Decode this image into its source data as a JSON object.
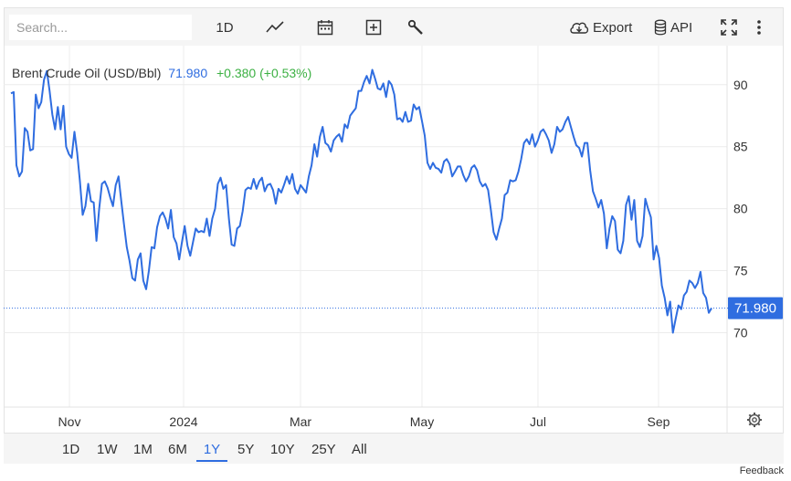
{
  "toolbar": {
    "search_placeholder": "Search...",
    "interval_label": "1D",
    "export_label": "Export",
    "api_label": "API",
    "icons": [
      "chart-line-icon",
      "calendar-icon",
      "add-box-icon",
      "wrench-icon",
      "cloud-download-icon",
      "database-icon",
      "fullscreen-icon",
      "more-vertical-icon"
    ]
  },
  "legend": {
    "name": "Brent Crude Oil (USD/Bbl)",
    "price": "71.980",
    "change": "+0.380 (+0.53%)"
  },
  "price_tag": "71.980",
  "ranges": [
    {
      "label": "1D",
      "active": false
    },
    {
      "label": "1W",
      "active": false
    },
    {
      "label": "1M",
      "active": false
    },
    {
      "label": "6M",
      "active": false
    },
    {
      "label": "1Y",
      "active": true
    },
    {
      "label": "5Y",
      "active": false
    },
    {
      "label": "10Y",
      "active": false
    },
    {
      "label": "25Y",
      "active": false
    },
    {
      "label": "All",
      "active": false
    }
  ],
  "feedback_label": "Feedback",
  "colors": {
    "line": "#2f6de0",
    "positive": "#3cb043",
    "grid": "#ececec",
    "toolbar_bg": "#f5f5f5"
  },
  "chart_data": {
    "type": "line",
    "title": "Brent Crude Oil (USD/Bbl)",
    "xlabel": "",
    "ylabel": "",
    "ylim": [
      64,
      93
    ],
    "yticks": [
      70,
      75,
      80,
      85,
      90
    ],
    "x_tick_labels": [
      "Nov",
      "2024",
      "Mar",
      "May",
      "Jul",
      "Sep"
    ],
    "grid": true,
    "last_value": 71.98,
    "series": [
      {
        "values": [
          89.3,
          89.4,
          83.5,
          82.6,
          83.0,
          86.5,
          86.2,
          84.7,
          84.8,
          89.2,
          88.1,
          88.6,
          90.4,
          91.1,
          89.5,
          87.6,
          86.4,
          88.2,
          86.4,
          88.3,
          85.0,
          84.4,
          84.1,
          86.2,
          84.5,
          82.2,
          79.5,
          80.2,
          82.0,
          80.6,
          80.5,
          77.4,
          80.0,
          82.0,
          82.2,
          81.7,
          80.9,
          80.2,
          81.9,
          82.6,
          80.6,
          78.7,
          76.9,
          75.8,
          74.4,
          74.2,
          75.9,
          76.4,
          74.2,
          73.5,
          75.0,
          76.9,
          76.8,
          78.5,
          79.4,
          79.7,
          79.2,
          78.4,
          79.9,
          77.7,
          77.2,
          75.9,
          77.3,
          78.6,
          77.0,
          76.2,
          77.3,
          78.4,
          78.1,
          78.2,
          78.1,
          79.2,
          77.8,
          79.2,
          80.0,
          82.0,
          82.5,
          81.6,
          81.9,
          79.2,
          77.1,
          77.0,
          78.4,
          78.6,
          79.8,
          81.5,
          81.7,
          81.6,
          82.4,
          81.6,
          82.2,
          82.5,
          81.4,
          81.9,
          82.0,
          81.5,
          80.4,
          81.6,
          81.3,
          81.9,
          82.6,
          82.0,
          82.8,
          81.6,
          81.2,
          81.9,
          81.6,
          81.3,
          82.6,
          83.5,
          85.2,
          84.2,
          85.8,
          86.6,
          85.3,
          85.1,
          84.6,
          85.5,
          85.8,
          86.0,
          85.4,
          86.8,
          86.5,
          87.5,
          87.8,
          88.1,
          89.5,
          89.5,
          90.2,
          90.7,
          90.1,
          91.2,
          90.5,
          89.7,
          89.6,
          90.1,
          89.0,
          90.3,
          90.0,
          89.2,
          87.2,
          87.3,
          87.0,
          87.8,
          87.0,
          87.1,
          88.4,
          88.0,
          88.2,
          87.1,
          85.9,
          83.7,
          83.2,
          83.7,
          83.3,
          83.2,
          82.9,
          83.8,
          84.0,
          83.6,
          82.6,
          83.0,
          83.4,
          83.4,
          82.7,
          82.2,
          82.6,
          83.3,
          83.5,
          83.1,
          82.2,
          81.8,
          82.0,
          81.5,
          79.9,
          78.1,
          77.5,
          78.4,
          79.2,
          81.1,
          81.3,
          82.3,
          82.2,
          82.3,
          83.0,
          84.0,
          85.3,
          85.6,
          85.2,
          86.0,
          85.0,
          85.5,
          86.2,
          86.4,
          86.0,
          85.5,
          84.5,
          85.2,
          86.6,
          86.2,
          86.4,
          87.0,
          87.4,
          86.6,
          85.8,
          85.1,
          84.9,
          84.2,
          85.3,
          85.3,
          83.1,
          81.4,
          80.8,
          80.1,
          80.7,
          79.6,
          76.8,
          78.4,
          79.4,
          79.0,
          76.7,
          76.4,
          77.4,
          80.3,
          81.0,
          79.1,
          80.7,
          77.4,
          76.9,
          77.8,
          80.8,
          80.0,
          79.3,
          75.9,
          77.0,
          76.0,
          73.8,
          72.8,
          71.4,
          72.5,
          70.0,
          71.1,
          72.2,
          71.9,
          73.0,
          73.3,
          74.2,
          74.0,
          73.6,
          74.0,
          74.9,
          73.2,
          72.8,
          71.6,
          71.98
        ]
      }
    ]
  }
}
